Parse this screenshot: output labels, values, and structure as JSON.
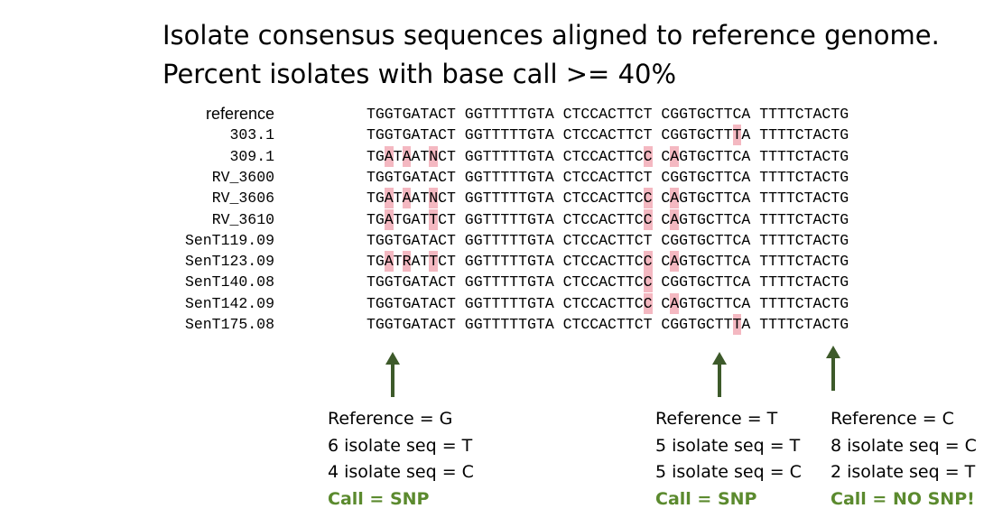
{
  "title_line1": "Isolate consensus sequences aligned to reference genome.",
  "title_line2": "Percent isolates with base call >= 40%",
  "alignment": {
    "rows": [
      {
        "label": "reference",
        "sequence": "TGGTGATACT GGTTTTTGTA CTCCACTTCT CGGTGCTTCA TTTTCTACTG",
        "highlights": []
      },
      {
        "label": "303.1",
        "sequence": "TGGTGATACT GGTTTTTGTA CTCCACTTCT CGGTGCTTTA TTTTCTACTG",
        "highlights": [
          38
        ]
      },
      {
        "label": "309.1",
        "sequence": "TGATAATNCT GGTTTTTGTA CTCCACTTCC CAGTGCTTCA TTTTCTACTG",
        "highlights": [
          2,
          4,
          7,
          29,
          31
        ]
      },
      {
        "label": "RV_3600",
        "sequence": "TGGTGATACT GGTTTTTGTA CTCCACTTCT CGGTGCTTCA TTTTCTACTG",
        "highlights": []
      },
      {
        "label": "RV_3606",
        "sequence": "TGATAATNCT GGTTTTTGTA CTCCACTTCC CAGTGCTTCA TTTTCTACTG",
        "highlights": [
          2,
          4,
          7,
          29,
          31
        ]
      },
      {
        "label": "RV_3610",
        "sequence": "TGATGATTCT GGTTTTTGTA CTCCACTTCC CAGTGCTTCA TTTTCTACTG",
        "highlights": [
          2,
          7,
          29,
          31
        ]
      },
      {
        "label": "SenT119.09",
        "sequence": "TGGTGATACT GGTTTTTGTA CTCCACTTCT CGGTGCTTCA TTTTCTACTG",
        "highlights": []
      },
      {
        "label": "SenT123.09",
        "sequence": "TGATRATTCT GGTTTTTGTA CTCCACTTCC CAGTGCTTCA TTTTCTACTG",
        "highlights": [
          2,
          4,
          7,
          29,
          31
        ]
      },
      {
        "label": "SenT140.08",
        "sequence": "TGGTGATACT GGTTTTTGTA CTCCACTTCC CGGTGCTTCA TTTTCTACTG",
        "highlights": [
          29
        ]
      },
      {
        "label": "SenT142.09",
        "sequence": "TGGTGATACT GGTTTTTGTA CTCCACTTCC CAGTGCTTCA TTTTCTACTG",
        "highlights": [
          29,
          31
        ]
      },
      {
        "label": "SenT175.08",
        "sequence": "TGGTGATACT GGTTTTTGTA CTCCACTTCT CGGTGCTTTA TTTTCTACTG",
        "highlights": [
          38
        ]
      }
    ],
    "highlight_color": "#f4b8c1"
  },
  "annotations": [
    {
      "ref": "Reference = G",
      "iso1": "6 isolate seq = T",
      "iso2": "4 isolate seq = C",
      "call": "Call = SNP"
    },
    {
      "ref": "Reference = T",
      "iso1": "5 isolate seq = T",
      "iso2": "5 isolate seq = C",
      "call": "Call = SNP"
    },
    {
      "ref": "Reference = C",
      "iso1": "8 isolate seq = C",
      "iso2": "2 isolate seq = T",
      "call": "Call = NO SNP!"
    }
  ],
  "arrow_color": "#3d5a2a",
  "call_color": "#5b8a2e"
}
